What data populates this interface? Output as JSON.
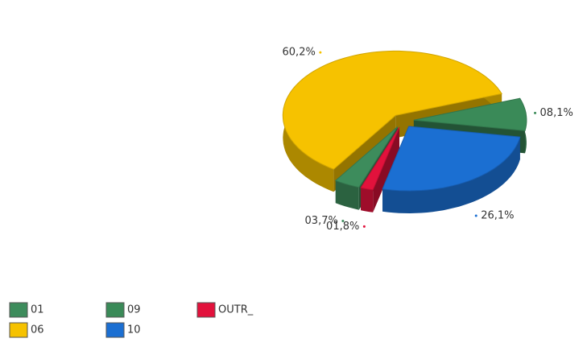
{
  "chart_data": {
    "type": "pie",
    "categories": [
      "01",
      "06",
      "09",
      "10",
      "OUTR_"
    ],
    "values": [
      3.7,
      60.2,
      8.1,
      26.1,
      1.8
    ],
    "value_labels": [
      "03,7%",
      "60,2%",
      "08,1%",
      "26,1%",
      "01,8%"
    ],
    "colors": [
      "#3d8c5c",
      "#f6c200",
      "#3a8a58",
      "#1b6fd2",
      "#e2123c"
    ],
    "legend": "bottom-left"
  }
}
